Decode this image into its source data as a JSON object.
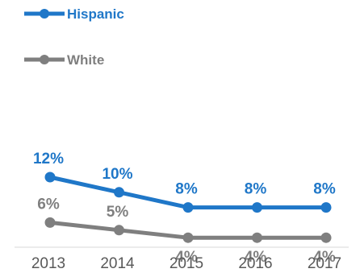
{
  "chart_data": {
    "type": "line",
    "categories": [
      "2013",
      "2014",
      "2015",
      "2016",
      "2017"
    ],
    "series": [
      {
        "name": "Hispanic",
        "color": "#1f77c8",
        "values": [
          12,
          10,
          8,
          8,
          8
        ],
        "labels": [
          "12%",
          "10%",
          "8%",
          "8%",
          "8%"
        ]
      },
      {
        "name": "White",
        "color": "#7f7f7f",
        "values": [
          6,
          5,
          4,
          4,
          4
        ],
        "labels": [
          "6%",
          "5%",
          "4%",
          "4%",
          "4%"
        ]
      }
    ],
    "title": "",
    "xlabel": "",
    "ylabel": "",
    "legend_position": "top-left",
    "grid": false
  }
}
